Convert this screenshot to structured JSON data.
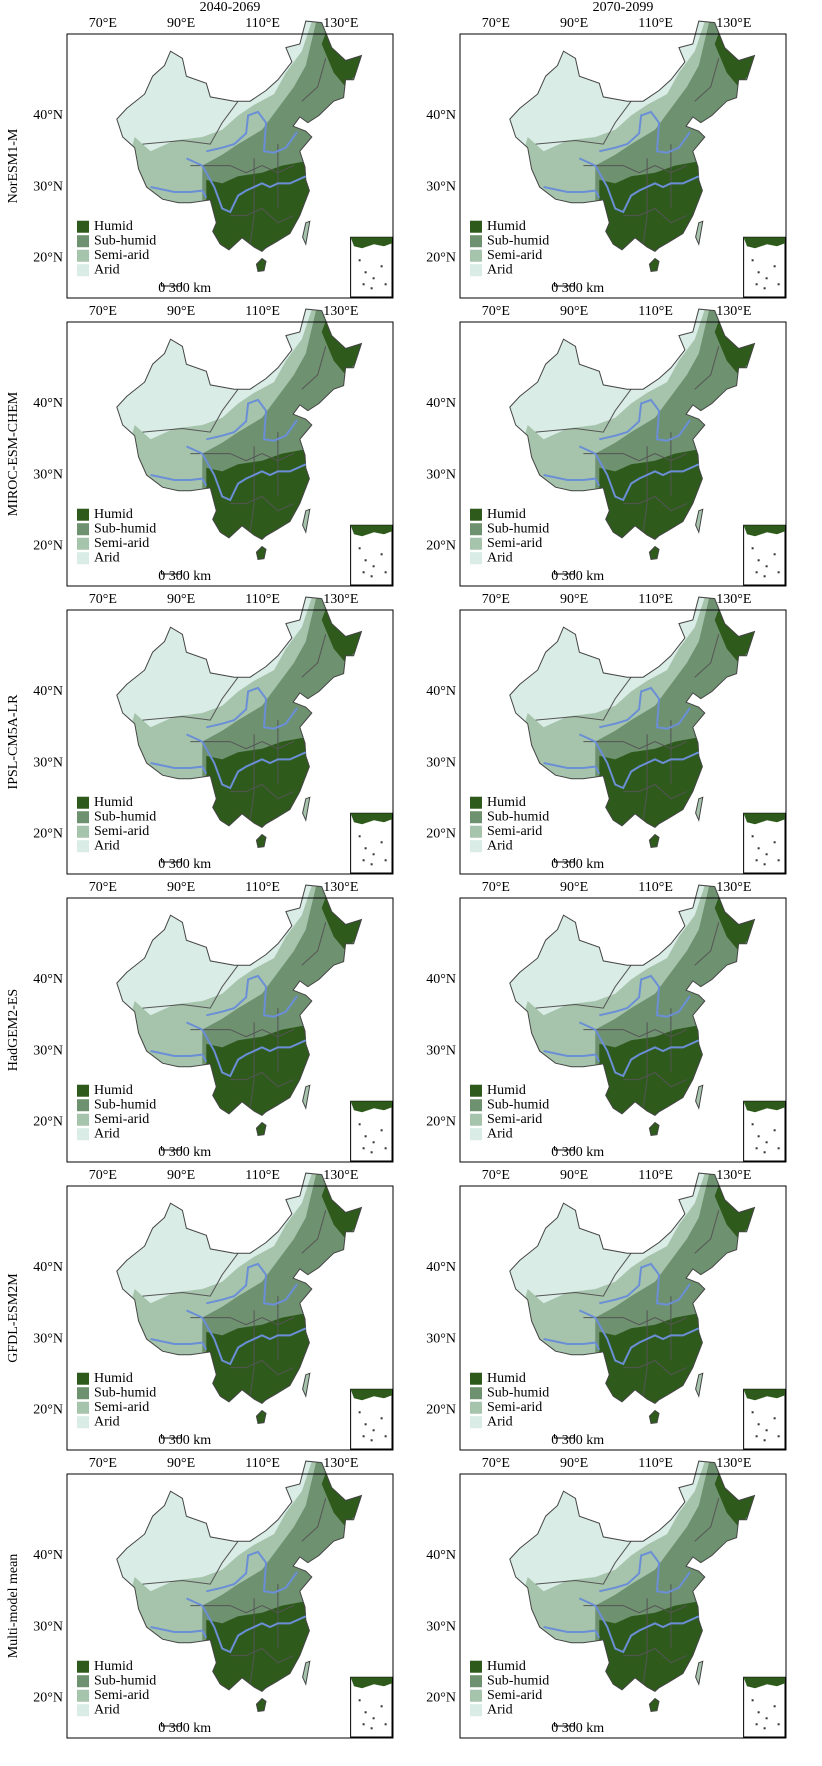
{
  "columns": [
    "2040-2069",
    "2070-2099"
  ],
  "rows": [
    "NorESM1-M",
    "MIROC-ESM-CHEM",
    "IPSL-CM5A-LR",
    "HadGEM2-ES",
    "GFDL-ESM2M",
    "Multi-model mean"
  ],
  "longitude_labels": [
    "70°E",
    "90°E",
    "110°E",
    "130°E"
  ],
  "latitude_labels": [
    "40°N",
    "30°N",
    "20°N"
  ],
  "legend": [
    {
      "label": "Humid",
      "color": "#2e5a1c"
    },
    {
      "label": "Sub-humid",
      "color": "#6e9170"
    },
    {
      "label": "Semi-arid",
      "color": "#a6c4ac"
    },
    {
      "label": "Arid",
      "color": "#d9ece6"
    }
  ],
  "scale_bar": "0 300 km"
}
